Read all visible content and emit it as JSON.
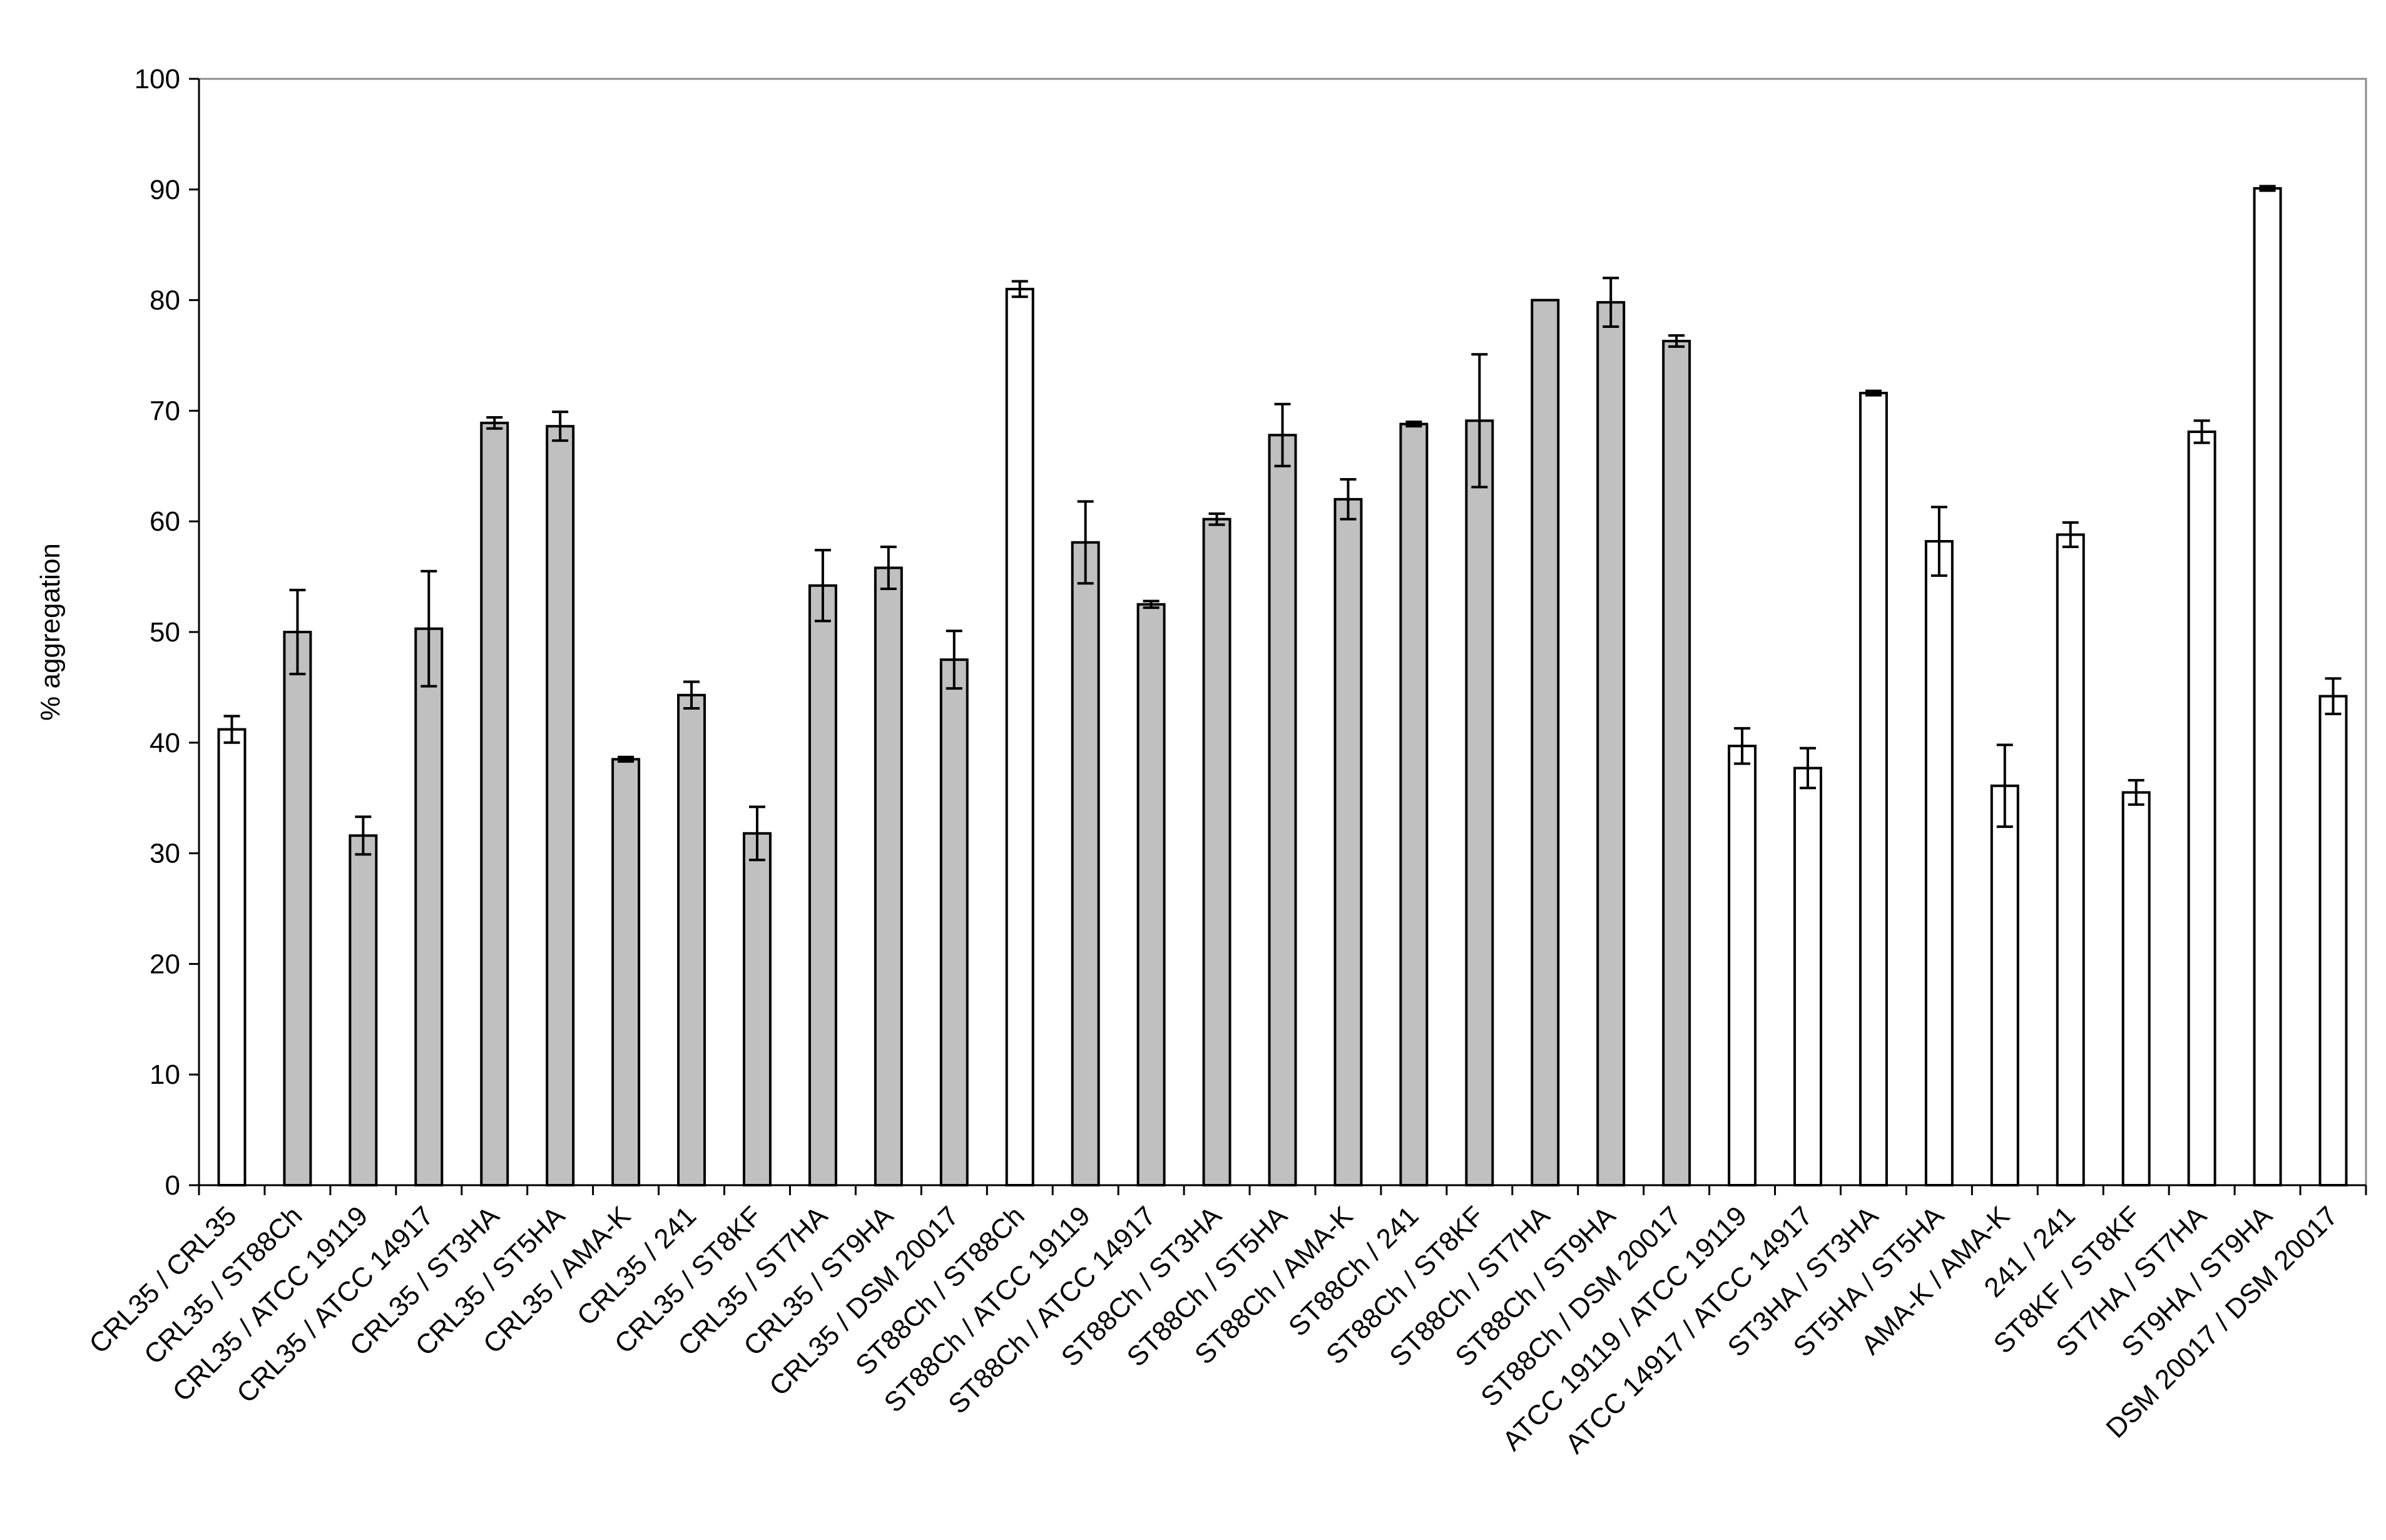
{
  "chart_data": {
    "type": "bar",
    "title": "",
    "xlabel": "",
    "ylabel": "% aggregation",
    "ylim": [
      0,
      100
    ],
    "yticks": [
      0,
      10,
      20,
      30,
      40,
      50,
      60,
      70,
      80,
      90,
      100
    ],
    "grid": false,
    "legend": "none",
    "colors": {
      "self": "#ffffff",
      "co": "#c0c0c0",
      "stroke": "#000000",
      "frame": "#8c8c8c"
    },
    "categories": [
      "CRL35 / CRL35",
      "CRL35 / ST88Ch",
      "CRL35 / ATCC 19119",
      "CRL35 / ATCC 14917",
      "CRL35 / ST3HA",
      "CRL35 / ST5HA",
      "CRL35 / AMA-K",
      "CRL35 / 241",
      "CRL35 / ST8KF",
      "CRL35 / ST7HA",
      "CRL35 / ST9HA",
      "CRL35 / DSM 20017",
      "ST88Ch / ST88Ch",
      "ST88Ch / ATCC 19119",
      "ST88Ch / ATCC 14917",
      "ST88Ch / ST3HA",
      "ST88Ch / ST5HA",
      "ST88Ch / AMA-K",
      "ST88Ch / 241",
      "ST88Ch / ST8KF",
      "ST88Ch / ST7HA",
      "ST88Ch / ST9HA",
      "ST88Ch / DSM 20017",
      "ATCC 19119 / ATCC 19119",
      "ATCC 14917 / ATCC 14917",
      "ST3HA / ST3HA",
      "ST5HA / ST5HA",
      "AMA-K / AMA-K",
      "241 / 241",
      "ST8KF / ST8KF",
      "ST7HA / ST7HA",
      "ST9HA / ST9HA",
      "DSM 20017 / DSM 20017"
    ],
    "values": [
      41.2,
      50.0,
      31.6,
      50.3,
      68.9,
      68.6,
      38.5,
      44.3,
      31.8,
      54.2,
      55.8,
      47.5,
      81.0,
      58.1,
      52.5,
      60.2,
      67.8,
      62.0,
      68.8,
      69.1,
      80.0,
      79.8,
      76.3,
      39.7,
      37.7,
      71.6,
      58.2,
      36.1,
      58.8,
      35.5,
      68.1,
      90.1,
      44.2
    ],
    "errors": [
      1.2,
      3.8,
      1.7,
      5.2,
      0.5,
      1.3,
      0.2,
      1.2,
      2.4,
      3.2,
      1.9,
      2.6,
      0.7,
      3.7,
      0.3,
      0.5,
      2.8,
      1.8,
      0.2,
      6.0,
      0.0,
      2.2,
      0.5,
      1.6,
      1.8,
      0.2,
      3.1,
      3.7,
      1.1,
      1.1,
      1.0,
      0.2,
      1.6
    ],
    "fill_group": [
      "self",
      "co",
      "co",
      "co",
      "co",
      "co",
      "co",
      "co",
      "co",
      "co",
      "co",
      "co",
      "self",
      "co",
      "co",
      "co",
      "co",
      "co",
      "co",
      "co",
      "co",
      "co",
      "co",
      "self",
      "self",
      "self",
      "self",
      "self",
      "self",
      "self",
      "self",
      "self",
      "self"
    ]
  }
}
